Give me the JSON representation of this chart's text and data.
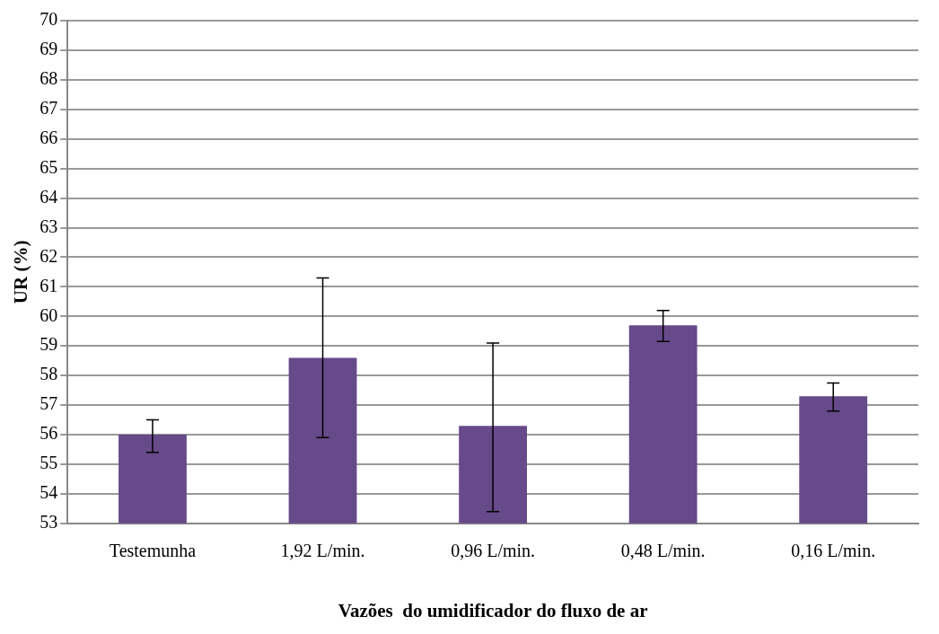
{
  "chart_data": {
    "type": "bar",
    "xlabel": "Vazões  do umidificador do fluxo de ar",
    "ylabel": "UR (%)",
    "categories": [
      "Testemunha",
      "1,92 L/min.",
      "0,96 L/min.",
      "0,48 L/min.",
      "0,16 L/min."
    ],
    "values": [
      56.0,
      58.6,
      56.3,
      59.7,
      57.3
    ],
    "errors": [
      [
        55.4,
        56.5
      ],
      [
        55.9,
        61.3
      ],
      [
        53.4,
        59.1
      ],
      [
        59.15,
        60.2
      ],
      [
        56.8,
        57.75
      ]
    ],
    "color": "#674a8a",
    "ylim": [
      53,
      70
    ],
    "yticks": [
      53,
      54,
      55,
      56,
      57,
      58,
      59,
      60,
      61,
      62,
      63,
      64,
      65,
      66,
      67,
      68,
      69,
      70
    ],
    "grid": "y",
    "legend": false
  }
}
